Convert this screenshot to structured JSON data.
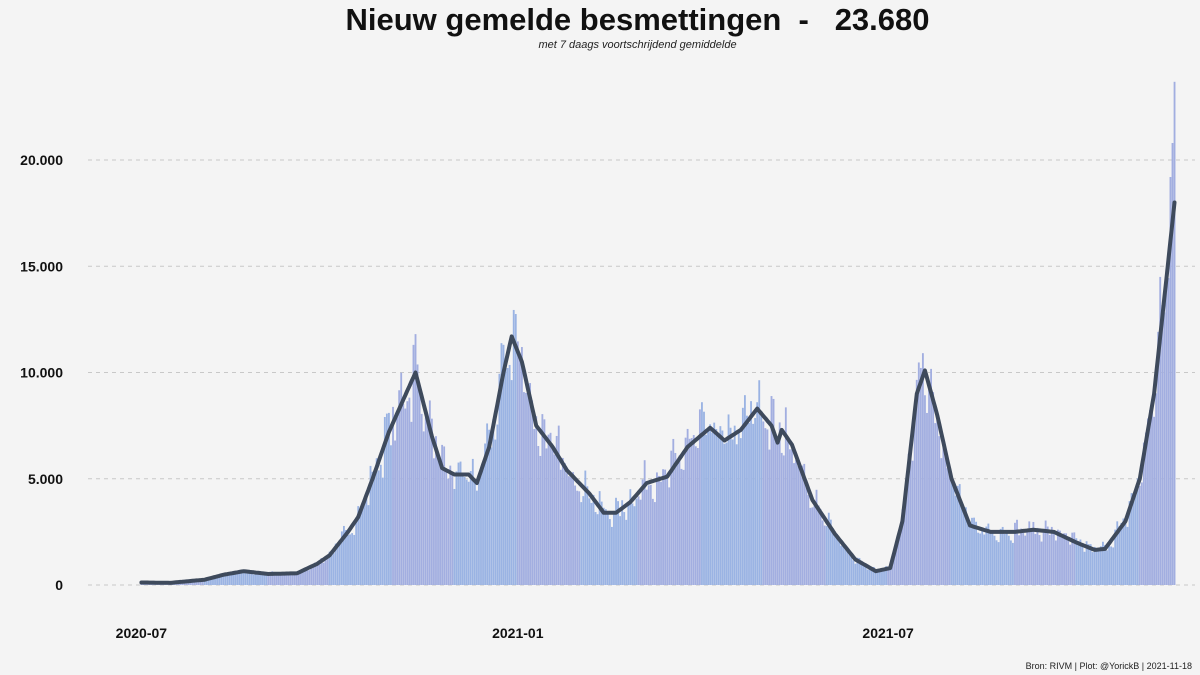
{
  "header": {
    "title": "Nieuw gemelde besmettingen  -   23.680",
    "subtitle": "met 7 daags voortschrijdend gemiddelde"
  },
  "footer": {
    "caption": "Bron: RIVM | Plot: @YorickB |  2021-11-18"
  },
  "colors": {
    "bar_a": "#a2aee0",
    "bar_b": "#9ab3e3",
    "line": "#3e4a5c",
    "grid": "#c8c8c8",
    "background": "#f4f4f4"
  },
  "chart_data": {
    "type": "bar",
    "title": "Nieuw gemelde besmettingen  -   23.680",
    "subtitle": "met 7 daags voortschrijdend gemiddelde",
    "xlabel": "",
    "ylabel": "",
    "x_range": [
      "2020-06-01",
      "2021-11-28"
    ],
    "ylim": [
      0,
      25000
    ],
    "yticks": [
      {
        "value": 0,
        "label": "0"
      },
      {
        "value": 5000,
        "label": "5.000"
      },
      {
        "value": 10000,
        "label": "10.000"
      },
      {
        "value": 15000,
        "label": "15.000"
      },
      {
        "value": 20000,
        "label": "20.000"
      }
    ],
    "xticks": [
      {
        "date": "2020-07-01",
        "label": "2020-07"
      },
      {
        "date": "2021-01-01",
        "label": "2021-01"
      },
      {
        "date": "2021-07-01",
        "label": "2021-07"
      }
    ],
    "grid": "horizontal dashed",
    "series": [
      {
        "kind": "daily bars",
        "start": "2020-07-01",
        "end": "2021-11-18",
        "last_value": 23680
      },
      {
        "kind": "7-day rolling average line",
        "points": [
          [
            "2020-07-01",
            120
          ],
          [
            "2020-07-15",
            100
          ],
          [
            "2020-08-01",
            250
          ],
          [
            "2020-08-10",
            480
          ],
          [
            "2020-08-20",
            650
          ],
          [
            "2020-09-01",
            520
          ],
          [
            "2020-09-15",
            550
          ],
          [
            "2020-09-25",
            1000
          ],
          [
            "2020-10-01",
            1400
          ],
          [
            "2020-10-10",
            2500
          ],
          [
            "2020-10-15",
            3200
          ],
          [
            "2020-10-22",
            5000
          ],
          [
            "2020-10-30",
            7200
          ],
          [
            "2020-11-05",
            8500
          ],
          [
            "2020-11-12",
            10000
          ],
          [
            "2020-11-20",
            7000
          ],
          [
            "2020-11-25",
            5500
          ],
          [
            "2020-12-01",
            5200
          ],
          [
            "2020-12-08",
            5200
          ],
          [
            "2020-12-12",
            4800
          ],
          [
            "2020-12-18",
            6500
          ],
          [
            "2020-12-25",
            10000
          ],
          [
            "2020-12-29",
            11700
          ],
          [
            "2021-01-03",
            10500
          ],
          [
            "2021-01-10",
            7500
          ],
          [
            "2021-01-18",
            6500
          ],
          [
            "2021-01-25",
            5400
          ],
          [
            "2021-02-05",
            4300
          ],
          [
            "2021-02-12",
            3400
          ],
          [
            "2021-02-18",
            3400
          ],
          [
            "2021-02-25",
            3900
          ],
          [
            "2021-03-05",
            4800
          ],
          [
            "2021-03-15",
            5100
          ],
          [
            "2021-03-25",
            6500
          ],
          [
            "2021-04-05",
            7400
          ],
          [
            "2021-04-12",
            6800
          ],
          [
            "2021-04-20",
            7300
          ],
          [
            "2021-04-28",
            8300
          ],
          [
            "2021-05-05",
            7500
          ],
          [
            "2021-05-08",
            6700
          ],
          [
            "2021-05-10",
            7300
          ],
          [
            "2021-05-15",
            6600
          ],
          [
            "2021-05-25",
            4000
          ],
          [
            "2021-06-05",
            2400
          ],
          [
            "2021-06-15",
            1200
          ],
          [
            "2021-06-25",
            650
          ],
          [
            "2021-07-02",
            800
          ],
          [
            "2021-07-08",
            3000
          ],
          [
            "2021-07-15",
            9000
          ],
          [
            "2021-07-19",
            10100
          ],
          [
            "2021-07-25",
            8000
          ],
          [
            "2021-08-01",
            5000
          ],
          [
            "2021-08-10",
            2800
          ],
          [
            "2021-08-20",
            2500
          ],
          [
            "2021-09-01",
            2500
          ],
          [
            "2021-09-10",
            2600
          ],
          [
            "2021-09-20",
            2500
          ],
          [
            "2021-10-01",
            2000
          ],
          [
            "2021-10-10",
            1650
          ],
          [
            "2021-10-15",
            1700
          ],
          [
            "2021-10-25",
            3000
          ],
          [
            "2021-11-01",
            5000
          ],
          [
            "2021-11-08",
            9000
          ],
          [
            "2021-11-13",
            13500
          ],
          [
            "2021-11-18",
            18000
          ]
        ]
      }
    ]
  }
}
